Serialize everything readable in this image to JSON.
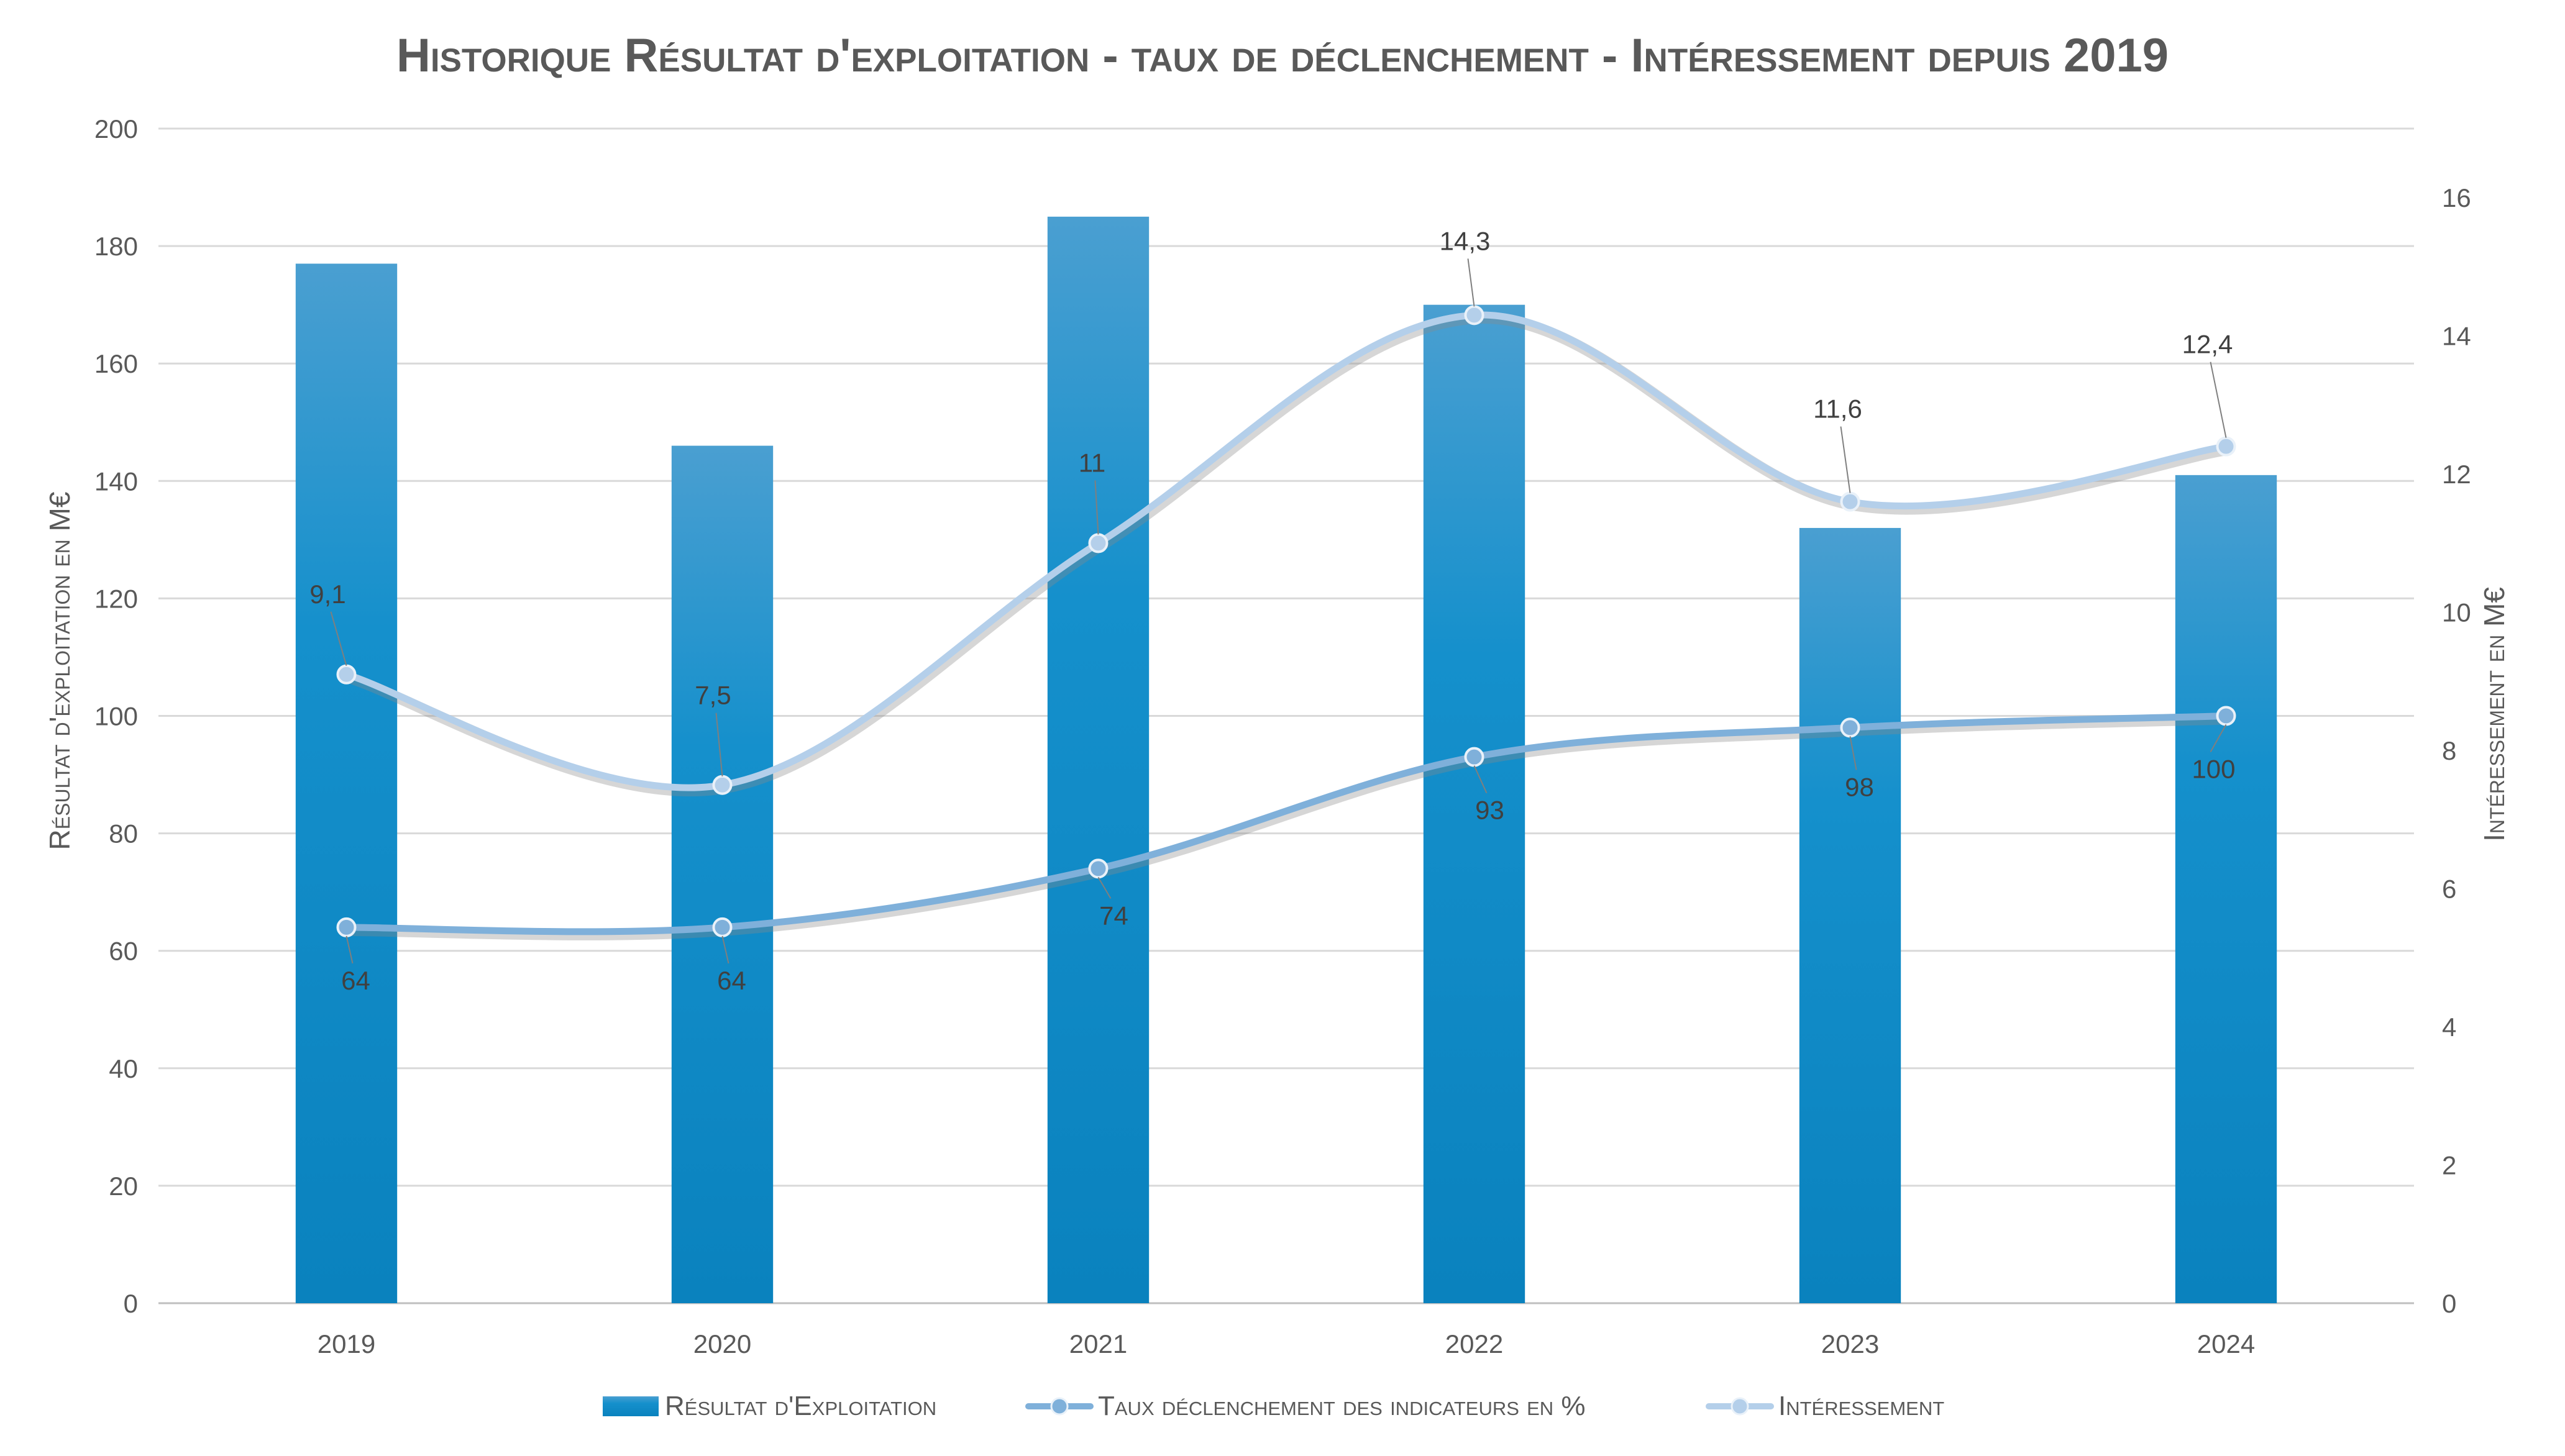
{
  "chart_data": {
    "type": "bar",
    "title": "Historique Résultat d'exploitation - taux de déclenchement - Intéressement depuis 2019",
    "categories": [
      "2019",
      "2020",
      "2021",
      "2022",
      "2023",
      "2024"
    ],
    "ylabel": "Résultat d'exploitation en M€",
    "y2label": "Intéressement en M€",
    "ylim": [
      0,
      200
    ],
    "y2lim": [
      0,
      17
    ],
    "yticks": [
      0,
      20,
      40,
      60,
      80,
      100,
      120,
      140,
      160,
      180,
      200
    ],
    "y2ticks": [
      0,
      2,
      4,
      6,
      8,
      10,
      12,
      14,
      16
    ],
    "grid": true,
    "legend_position": "bottom",
    "series": [
      {
        "name": "Résultat d'Exploitation",
        "type": "bar",
        "axis": "left",
        "values": [
          177,
          146,
          185,
          170,
          132,
          141
        ],
        "color": "#1E90C8"
      },
      {
        "name": "Taux déclenchement des indicateurs en %",
        "type": "line",
        "axis": "left",
        "values": [
          64,
          64,
          74,
          93,
          98,
          100
        ],
        "labels": [
          "64",
          "64",
          "74",
          "93",
          "98",
          "100"
        ],
        "color": "#7FB0DA"
      },
      {
        "name": "Intéressement",
        "type": "line",
        "axis": "right",
        "values": [
          9.1,
          7.5,
          11,
          14.3,
          11.6,
          12.4
        ],
        "labels": [
          "9,1",
          "7,5",
          "11",
          "14,3",
          "11,6",
          "12,4"
        ],
        "color": "#B4CFEA"
      }
    ]
  }
}
